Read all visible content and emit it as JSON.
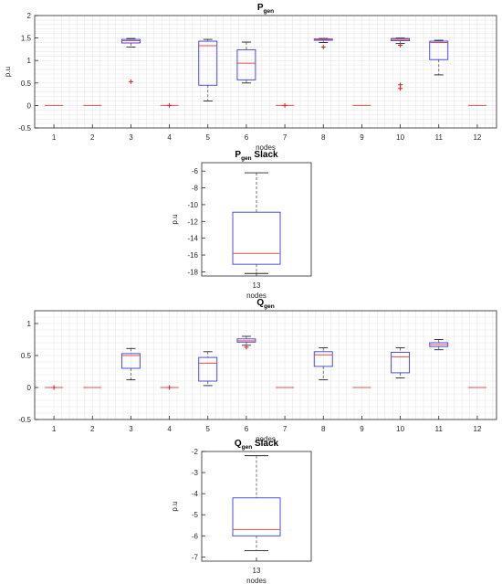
{
  "chart_data": [
    {
      "type": "boxplot",
      "title": {
        "main": "P",
        "sub": "gen",
        "rest": ""
      },
      "xlabel": "nodes",
      "ylabel": "p.u",
      "ylim": [
        -0.5,
        2
      ],
      "yticks": [
        "-0.5",
        "0",
        "0.5",
        "1",
        "1.5",
        "2"
      ],
      "categories": [
        "1",
        "2",
        "3",
        "4",
        "5",
        "6",
        "7",
        "8",
        "9",
        "10",
        "11",
        "12"
      ],
      "grid": true,
      "boxes": [
        {
          "q1": 0,
          "median": 0,
          "q3": 0,
          "whisker_low": 0,
          "whisker_high": 0,
          "outliers": []
        },
        {
          "q1": 0,
          "median": 0,
          "q3": 0,
          "whisker_low": 0,
          "whisker_high": 0,
          "outliers": []
        },
        {
          "q1": 1.39,
          "median": 1.44,
          "q3": 1.47,
          "whisker_low": 1.3,
          "whisker_high": 1.49,
          "outliers": [
            0.53
          ]
        },
        {
          "q1": 0,
          "median": 0,
          "q3": 0,
          "whisker_low": 0,
          "whisker_high": 0,
          "outliers": [
            0
          ]
        },
        {
          "q1": 0.45,
          "median": 1.33,
          "q3": 1.43,
          "whisker_low": 0.1,
          "whisker_high": 1.47,
          "outliers": []
        },
        {
          "q1": 0.57,
          "median": 0.94,
          "q3": 1.24,
          "whisker_low": 0.5,
          "whisker_high": 1.41,
          "outliers": []
        },
        {
          "q1": 0,
          "median": 0,
          "q3": 0,
          "whisker_low": 0,
          "whisker_high": 0,
          "outliers": [
            0
          ]
        },
        {
          "q1": 1.45,
          "median": 1.47,
          "q3": 1.48,
          "whisker_low": 1.4,
          "whisker_high": 1.49,
          "outliers": [
            1.3
          ]
        },
        {
          "q1": 0,
          "median": 0,
          "q3": 0,
          "whisker_low": 0,
          "whisker_high": 0,
          "outliers": []
        },
        {
          "q1": 1.44,
          "median": 1.47,
          "q3": 1.49,
          "whisker_low": 1.38,
          "whisker_high": 1.5,
          "outliers": [
            1.34,
            0.46,
            0.38
          ]
        },
        {
          "q1": 1.02,
          "median": 1.4,
          "q3": 1.43,
          "whisker_low": 0.68,
          "whisker_high": 1.45,
          "outliers": []
        },
        {
          "q1": 0,
          "median": 0,
          "q3": 0,
          "whisker_low": 0,
          "whisker_high": 0,
          "outliers": []
        }
      ]
    },
    {
      "type": "boxplot",
      "title": {
        "main": "P",
        "sub": "gen",
        "rest": " Slack"
      },
      "xlabel": "nodes",
      "ylabel": "p.u",
      "ylim": [
        -18.5,
        -5
      ],
      "yticks": [
        "-18",
        "-16",
        "-14",
        "-12",
        "-10",
        "-8",
        "-6"
      ],
      "categories": [
        "13"
      ],
      "grid": false,
      "boxes": [
        {
          "q1": -17.1,
          "median": -15.8,
          "q3": -10.9,
          "whisker_low": -18.2,
          "whisker_high": -6.2,
          "outliers": []
        }
      ]
    },
    {
      "type": "boxplot",
      "title": {
        "main": "Q",
        "sub": "gen",
        "rest": ""
      },
      "xlabel": "nodes",
      "ylabel": "",
      "ylim": [
        -0.5,
        1.2
      ],
      "yticks": [
        "-0.5",
        "0",
        "0.5",
        "1"
      ],
      "categories": [
        "1",
        "2",
        "3",
        "4",
        "5",
        "6",
        "7",
        "8",
        "9",
        "10",
        "11",
        "12"
      ],
      "grid": true,
      "boxes": [
        {
          "q1": 0,
          "median": 0,
          "q3": 0,
          "whisker_low": 0,
          "whisker_high": 0,
          "outliers": [
            0
          ]
        },
        {
          "q1": 0,
          "median": 0,
          "q3": 0,
          "whisker_low": 0,
          "whisker_high": 0,
          "outliers": []
        },
        {
          "q1": 0.3,
          "median": 0.5,
          "q3": 0.53,
          "whisker_low": 0.12,
          "whisker_high": 0.61,
          "outliers": []
        },
        {
          "q1": 0,
          "median": 0,
          "q3": 0,
          "whisker_low": 0,
          "whisker_high": 0,
          "outliers": [
            0
          ]
        },
        {
          "q1": 0.1,
          "median": 0.38,
          "q3": 0.47,
          "whisker_low": 0.03,
          "whisker_high": 0.56,
          "outliers": []
        },
        {
          "q1": 0.71,
          "median": 0.73,
          "q3": 0.76,
          "whisker_low": 0.66,
          "whisker_high": 0.8,
          "outliers": [
            0.63
          ]
        },
        {
          "q1": 0,
          "median": 0,
          "q3": 0,
          "whisker_low": 0,
          "whisker_high": 0,
          "outliers": []
        },
        {
          "q1": 0.33,
          "median": 0.51,
          "q3": 0.56,
          "whisker_low": 0.12,
          "whisker_high": 0.62,
          "outliers": []
        },
        {
          "q1": 0,
          "median": 0,
          "q3": 0,
          "whisker_low": 0,
          "whisker_high": 0,
          "outliers": []
        },
        {
          "q1": 0.23,
          "median": 0.48,
          "q3": 0.55,
          "whisker_low": 0.15,
          "whisker_high": 0.62,
          "outliers": []
        },
        {
          "q1": 0.64,
          "median": 0.67,
          "q3": 0.7,
          "whisker_low": 0.59,
          "whisker_high": 0.75,
          "outliers": []
        },
        {
          "q1": 0,
          "median": 0,
          "q3": 0,
          "whisker_low": 0,
          "whisker_high": 0,
          "outliers": []
        }
      ]
    },
    {
      "type": "boxplot",
      "title": {
        "main": "Q",
        "sub": "gen",
        "rest": " Slack"
      },
      "xlabel": "nodes",
      "ylabel": "p.u",
      "ylim": [
        -7.2,
        -2
      ],
      "yticks": [
        "-7",
        "-6",
        "-5",
        "-4",
        "-3",
        "-2"
      ],
      "categories": [
        "13"
      ],
      "grid": false,
      "boxes": [
        {
          "q1": -6.0,
          "median": -5.7,
          "q3": -4.2,
          "whisker_low": -6.7,
          "whisker_high": -2.2,
          "outliers": []
        }
      ]
    }
  ],
  "colors": {
    "box": "#3b3bd9",
    "median": "#e0504a",
    "outlier": "#e41a1c",
    "whisker": "#555555",
    "axis": "#262626",
    "grid": "#e6e6e6"
  }
}
